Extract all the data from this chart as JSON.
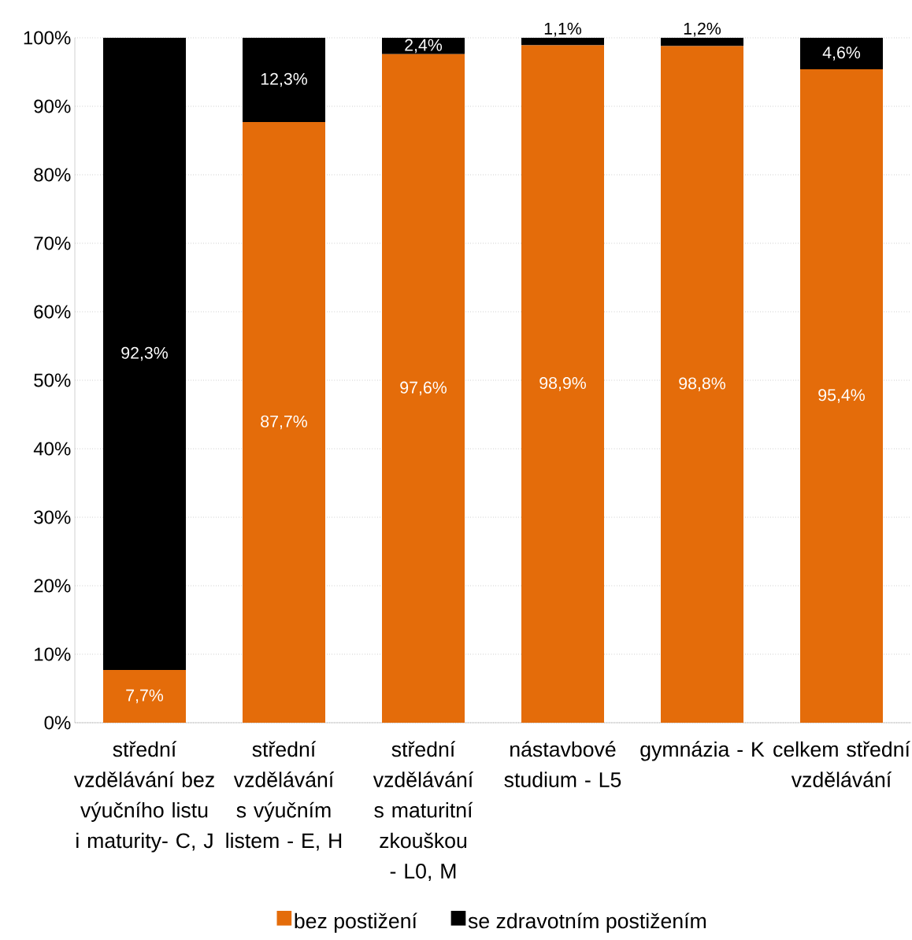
{
  "chart_data": {
    "type": "bar",
    "stacked": true,
    "categories": [
      "střední vzdělávání bez výučního listu i maturity- C, J",
      "střední vzdělávání s výučním listem - E, H",
      "střední vzdělávání s maturitní zkouškou - L0, M",
      "nástavbové studium - L5",
      "gymnázia - K",
      "celkem střední vzdělávání"
    ],
    "series": [
      {
        "name": "bez postižení",
        "color": "#e46c0a",
        "values": [
          7.7,
          87.7,
          97.6,
          98.9,
          98.8,
          95.4
        ],
        "value_labels": [
          "7,7%",
          "87,7%",
          "97,6%",
          "98,9%",
          "98,8%",
          "95,4%"
        ]
      },
      {
        "name": "se zdravotním postižením",
        "color": "#000000",
        "values": [
          92.3,
          12.3,
          2.4,
          1.1,
          1.2,
          4.6
        ],
        "value_labels": [
          "92,3%",
          "12,3%",
          "2,4%",
          "1,1%",
          "1,2%",
          "4,6%"
        ]
      }
    ],
    "ylim": [
      0,
      100
    ],
    "yticks": [
      {
        "value": 0,
        "label": "0%"
      },
      {
        "value": 10,
        "label": "10%"
      },
      {
        "value": 20,
        "label": "20%"
      },
      {
        "value": 30,
        "label": "30%"
      },
      {
        "value": 40,
        "label": "40%"
      },
      {
        "value": 50,
        "label": "50%"
      },
      {
        "value": 60,
        "label": "60%"
      },
      {
        "value": 70,
        "label": "70%"
      },
      {
        "value": 80,
        "label": "80%"
      },
      {
        "value": 90,
        "label": "90%"
      },
      {
        "value": 100,
        "label": "100%"
      }
    ],
    "grid": "y",
    "legend": "bottom"
  }
}
